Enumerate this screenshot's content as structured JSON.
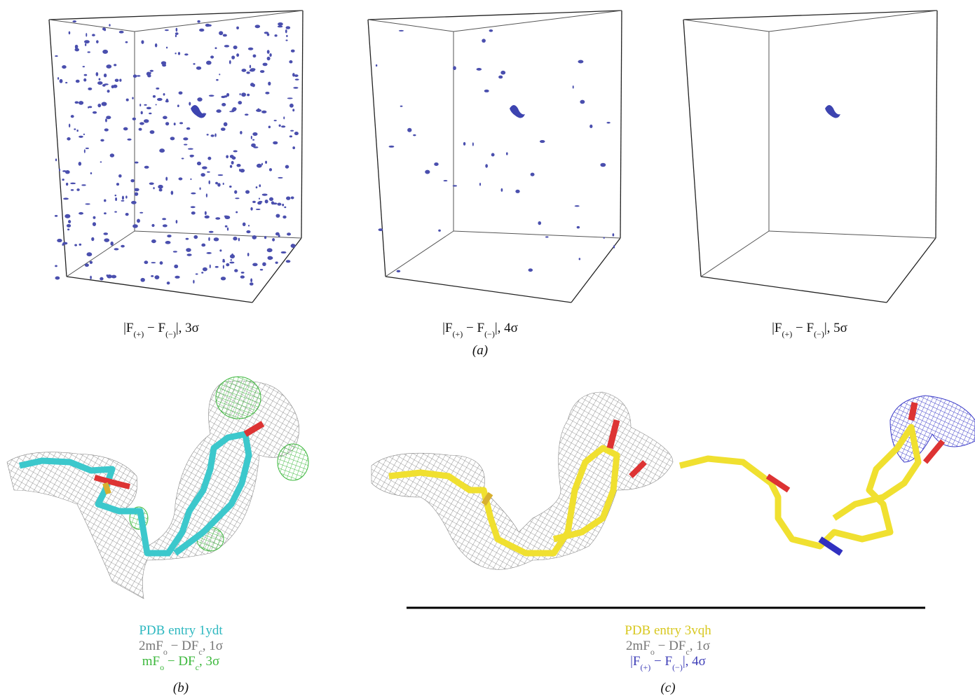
{
  "panel_a": {
    "captions": [
      [
        "|F",
        "(+)",
        " − F",
        "(−)",
        "|, 3σ"
      ],
      [
        "|F",
        "(+)",
        " − F",
        "(−)",
        "|, 4σ"
      ],
      [
        "|F",
        "(+)",
        " − F",
        "(−)",
        "|, 5σ"
      ]
    ],
    "label": "(a)"
  },
  "panel_b": {
    "lines": [
      [
        "PDB entry 1ydt"
      ],
      [
        "2mF",
        "o",
        " − DF",
        "c",
        ", 1σ"
      ],
      [
        "mF",
        "o",
        " − DF",
        "c",
        ", 3σ"
      ]
    ],
    "label": "(b)"
  },
  "panel_c": {
    "lines": [
      [
        "PDB entry 3vqh"
      ],
      [
        "2mF",
        "o",
        " − DF",
        "c",
        ", 1σ"
      ],
      [
        "|F",
        "(+)",
        " − F",
        "(−)",
        "|, 4σ"
      ]
    ],
    "label": "(c)"
  }
}
